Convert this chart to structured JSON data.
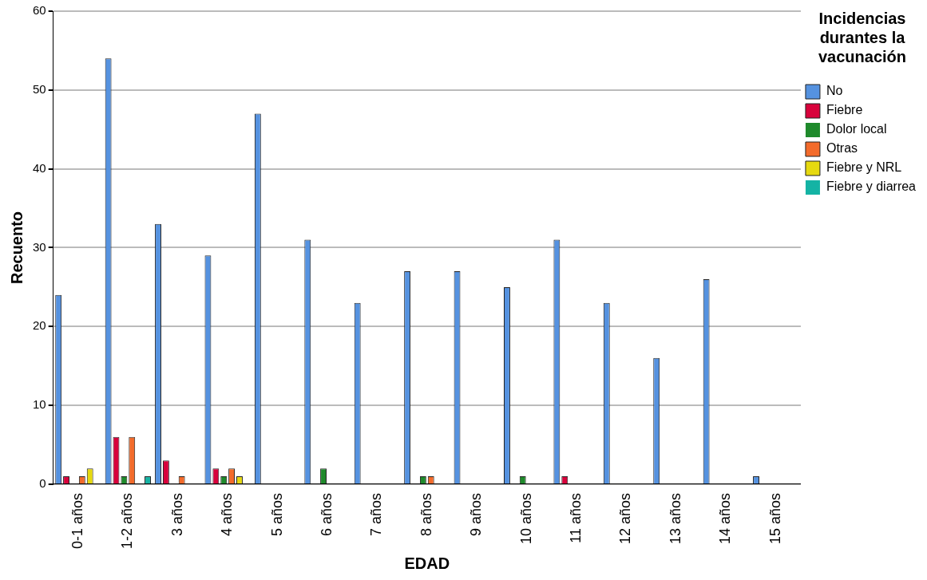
{
  "chart_data": {
    "type": "bar",
    "xlabel": "EDAD",
    "ylabel": "Recuento",
    "legend_title": "Incidencias durantes la vacunación",
    "categories": [
      "0-1 años",
      "1-2 años",
      "3 años",
      "4 años",
      "5 años",
      "6 años",
      "7 años",
      "8 años",
      "9 años",
      "10 años",
      "11 años",
      "12 años",
      "13 años",
      "14 años",
      "15 años"
    ],
    "series": [
      {
        "name": "No",
        "color": "#5592e0",
        "values": [
          24,
          54,
          33,
          29,
          47,
          31,
          23,
          27,
          27,
          25,
          31,
          23,
          16,
          26,
          1
        ]
      },
      {
        "name": "Fiebre",
        "color": "#d8023b",
        "values": [
          1,
          6,
          3,
          2,
          0,
          0,
          0,
          0,
          0,
          0,
          1,
          0,
          0,
          0,
          0
        ]
      },
      {
        "name": "Dolor local",
        "color": "#1f8a2b",
        "values": [
          0,
          1,
          0,
          1,
          0,
          2,
          0,
          1,
          0,
          1,
          0,
          0,
          0,
          0,
          0
        ]
      },
      {
        "name": "Otras",
        "color": "#f36b2b",
        "values": [
          1,
          6,
          1,
          2,
          0,
          0,
          0,
          1,
          0,
          0,
          0,
          0,
          0,
          0,
          0
        ]
      },
      {
        "name": "Fiebre y NRL",
        "color": "#e6d90f",
        "values": [
          2,
          0,
          0,
          1,
          0,
          0,
          0,
          0,
          0,
          0,
          0,
          0,
          0,
          0,
          0
        ]
      },
      {
        "name": "Fiebre y diarrea",
        "color": "#14b3a4",
        "values": [
          0,
          1,
          0,
          0,
          0,
          0,
          0,
          0,
          0,
          0,
          0,
          0,
          0,
          0,
          0
        ]
      }
    ],
    "ylim": [
      0,
      60
    ],
    "yticks": [
      0,
      10,
      20,
      30,
      40,
      50,
      60
    ],
    "grid": "y",
    "legend": "top right"
  }
}
